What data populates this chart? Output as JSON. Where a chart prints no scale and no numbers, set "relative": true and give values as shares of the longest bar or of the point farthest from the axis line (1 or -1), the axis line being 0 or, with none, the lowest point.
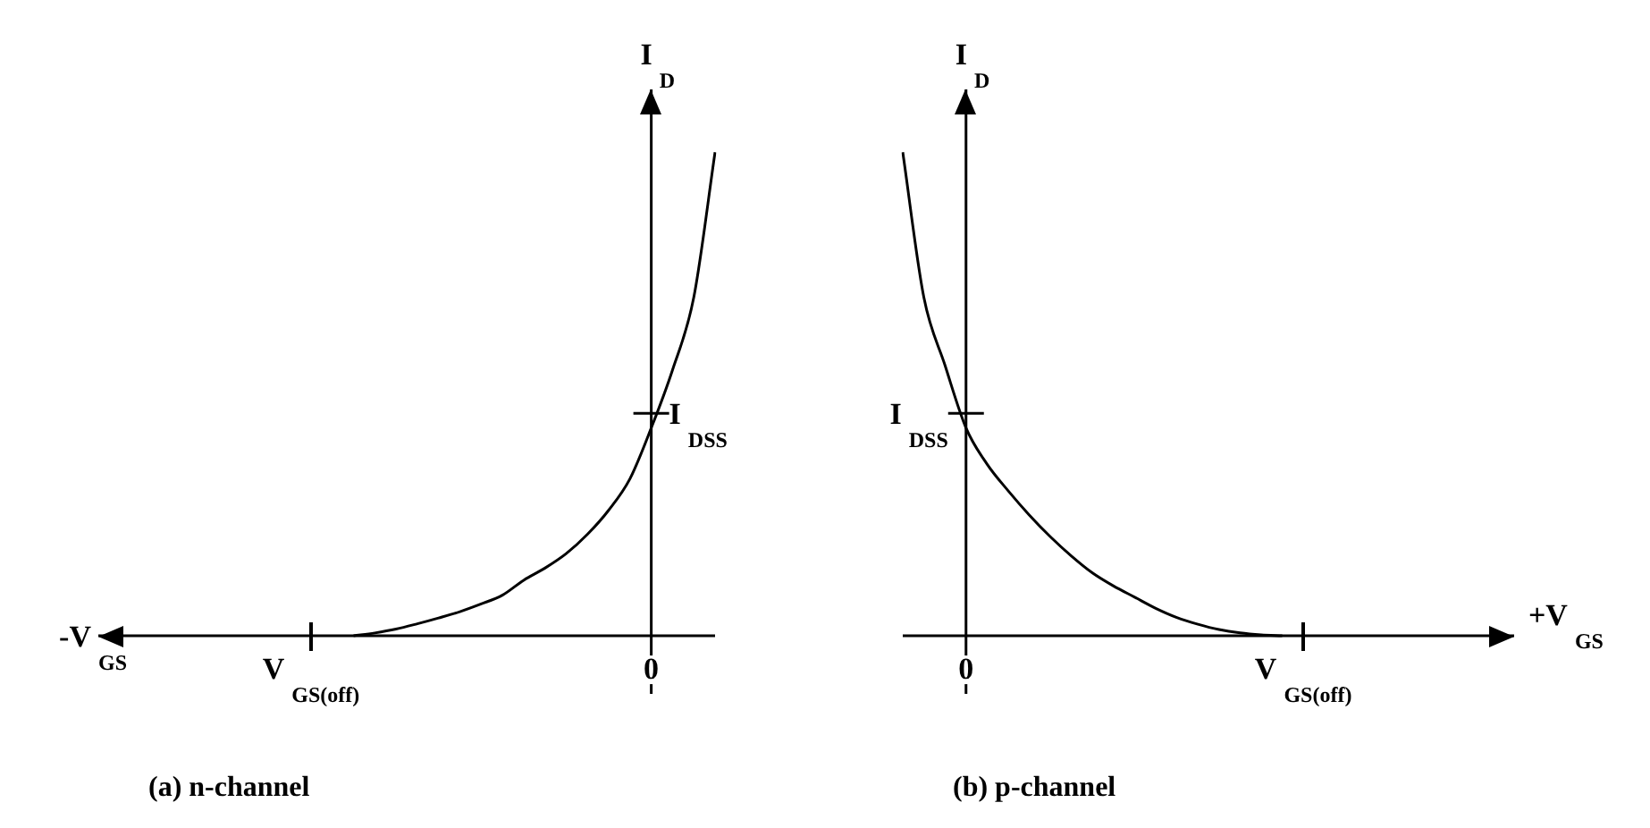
{
  "chart_data": [
    {
      "type": "line",
      "title": "(a) n-channel",
      "xlabel": "-V$_{GS}$",
      "ylabel": "I$_{D}$",
      "relative": true,
      "legend": false,
      "marker": "none",
      "categories": [
        null,
        null,
        null,
        null,
        null,
        null,
        null,
        null,
        null,
        null,
        "V$_{GS(off)}$",
        null,
        null,
        null,
        null,
        null,
        null,
        null,
        null,
        null,
        null,
        null,
        null,
        null,
        null,
        null,
        "0",
        null,
        null,
        null
      ],
      "annotations": [
        {
          "text": "I$_{DSS}$",
          "x": "0",
          "y": 0.46
        }
      ],
      "series": [
        {
          "color": "#000000",
          "values": [
            null,
            null,
            null,
            null,
            null,
            null,
            null,
            null,
            null,
            null,
            null,
            null,
            0,
            0.006,
            0.014,
            0.025,
            0.037,
            0.05,
            0.066,
            0.084,
            0.115,
            0.14,
            0.17,
            0.21,
            0.26,
            0.325,
            0.43,
            0.55,
            0.7,
            1
          ]
        }
      ]
    },
    {
      "type": "line",
      "title": "(b) p-channel",
      "xlabel": "+V$_{GS}$",
      "ylabel": "I$_{D}$",
      "relative": true,
      "legend": false,
      "marker": "none",
      "categories": [
        null,
        null,
        null,
        "0",
        null,
        null,
        null,
        null,
        null,
        null,
        null,
        null,
        null,
        null,
        null,
        null,
        null,
        null,
        null,
        "V$_{GS(off)}$",
        null,
        null,
        null,
        null,
        null,
        null,
        null,
        null,
        null,
        null
      ],
      "annotations": [
        {
          "text": "I$_{DSS}$",
          "x": "0",
          "y": 0.46
        }
      ],
      "series": [
        {
          "color": "#000000",
          "values": [
            1,
            0.7,
            0.56,
            0.43,
            0.355,
            0.3,
            0.25,
            0.205,
            0.165,
            0.13,
            0.103,
            0.08,
            0.057,
            0.038,
            0.024,
            0.013,
            0.006,
            0.002,
            0,
            null,
            null,
            null,
            null,
            null,
            null,
            null,
            null,
            null,
            null,
            null
          ]
        }
      ]
    }
  ]
}
